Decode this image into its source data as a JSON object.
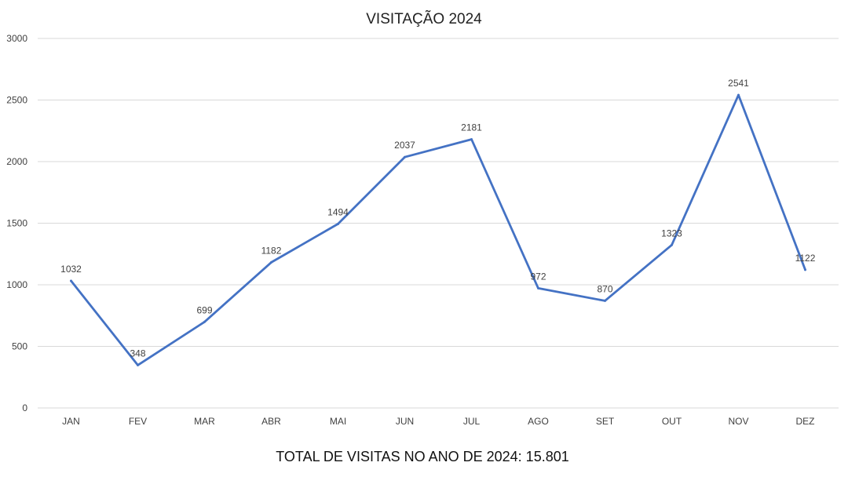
{
  "chart_data": {
    "type": "line",
    "title": "VISITAÇÃO 2024",
    "categories": [
      "JAN",
      "FEV",
      "MAR",
      "ABR",
      "MAI",
      "JUN",
      "JUL",
      "AGO",
      "SET",
      "OUT",
      "NOV",
      "DEZ"
    ],
    "series": [
      {
        "values": [
          1032,
          348,
          699,
          1182,
          1494,
          2037,
          2181,
          972,
          870,
          1323,
          2541,
          1122
        ],
        "color": "#4472c4"
      }
    ],
    "ylim": [
      0,
      3000
    ],
    "yticks": [
      0,
      500,
      1000,
      1500,
      2000,
      2500,
      3000
    ],
    "grid": true,
    "legend": "none",
    "xlabel": "",
    "ylabel": ""
  },
  "footer": {
    "text": "TOTAL DE VISITAS NO ANO DE 2024: 15.801"
  }
}
